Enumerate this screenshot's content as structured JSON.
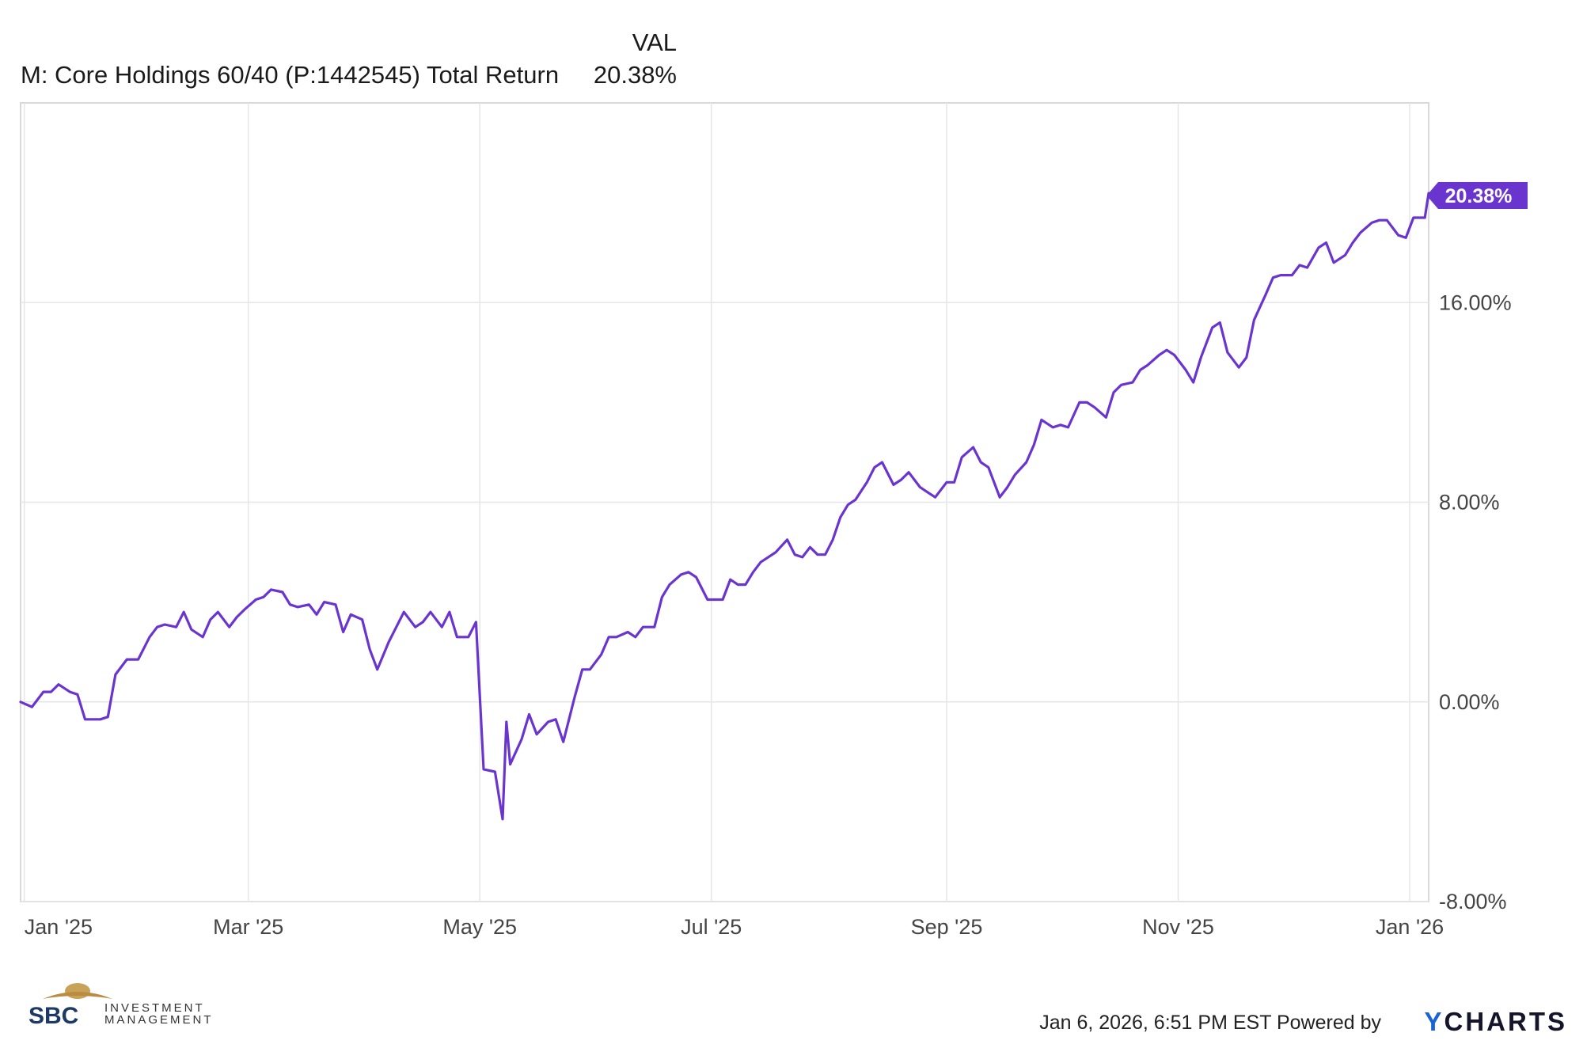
{
  "legend": {
    "column_header": "VAL",
    "series_name": "M: Core Holdings 60/40 (P:1442545) Total Return",
    "series_value": "20.38%"
  },
  "last_value_badge": "20.38%",
  "footer": {
    "timestamp": "Jan 6, 2026, 6:51 PM EST",
    "powered_by": "Powered by",
    "brand_y": "Y",
    "brand_rest": "CHARTS",
    "logo_letters": "SBC",
    "logo_word1": "INVESTMENT",
    "logo_word2": "MANAGEMENT"
  },
  "colors": {
    "series": "#6a35cf",
    "grid": "#e6e6e6",
    "axis": "#cccccc"
  },
  "chart_data": {
    "type": "line",
    "title": "",
    "xlabel": "",
    "ylabel": "",
    "x_ticks": [
      "Jan '25",
      "Mar '25",
      "May '25",
      "Jul '25",
      "Sep '25",
      "Nov '25",
      "Jan '26"
    ],
    "x_tick_dates": [
      "2025-01-01",
      "2025-03-01",
      "2025-05-01",
      "2025-07-01",
      "2025-09-01",
      "2025-11-01",
      "2026-01-01"
    ],
    "y_ticks": [
      "16.00%",
      "8.00%",
      "0.00%",
      "-8.00%"
    ],
    "y_tick_values": [
      16,
      8,
      0,
      -8
    ],
    "ylim": [
      -8,
      24
    ],
    "xlim": [
      "2024-12-31",
      "2026-01-06"
    ],
    "grid": true,
    "series": [
      {
        "name": "M: Core Holdings 60/40 (P:1442545) Total Return",
        "unit": "%",
        "points": [
          [
            "2024-12-31",
            0.0
          ],
          [
            "2025-01-03",
            -0.2
          ],
          [
            "2025-01-06",
            0.4
          ],
          [
            "2025-01-08",
            0.4
          ],
          [
            "2025-01-10",
            0.7
          ],
          [
            "2025-01-13",
            0.4
          ],
          [
            "2025-01-15",
            0.3
          ],
          [
            "2025-01-17",
            -0.7
          ],
          [
            "2025-01-21",
            -0.7
          ],
          [
            "2025-01-23",
            -0.6
          ],
          [
            "2025-01-25",
            1.1
          ],
          [
            "2025-01-28",
            1.7
          ],
          [
            "2025-01-31",
            1.7
          ],
          [
            "2025-02-03",
            2.6
          ],
          [
            "2025-02-05",
            3.0
          ],
          [
            "2025-02-07",
            3.1
          ],
          [
            "2025-02-10",
            3.0
          ],
          [
            "2025-02-12",
            3.6
          ],
          [
            "2025-02-14",
            2.9
          ],
          [
            "2025-02-17",
            2.6
          ],
          [
            "2025-02-19",
            3.3
          ],
          [
            "2025-02-21",
            3.6
          ],
          [
            "2025-02-24",
            3.0
          ],
          [
            "2025-02-26",
            3.4
          ],
          [
            "2025-02-28",
            3.7
          ],
          [
            "2025-03-03",
            4.1
          ],
          [
            "2025-03-05",
            4.2
          ],
          [
            "2025-03-07",
            4.5
          ],
          [
            "2025-03-10",
            4.4
          ],
          [
            "2025-03-12",
            3.9
          ],
          [
            "2025-03-14",
            3.8
          ],
          [
            "2025-03-17",
            3.9
          ],
          [
            "2025-03-19",
            3.5
          ],
          [
            "2025-03-21",
            4.0
          ],
          [
            "2025-03-24",
            3.9
          ],
          [
            "2025-03-26",
            2.8
          ],
          [
            "2025-03-28",
            3.5
          ],
          [
            "2025-03-31",
            3.3
          ],
          [
            "2025-04-02",
            2.1
          ],
          [
            "2025-04-04",
            1.3
          ],
          [
            "2025-04-07",
            2.4
          ],
          [
            "2025-04-09",
            3.0
          ],
          [
            "2025-04-11",
            3.6
          ],
          [
            "2025-04-14",
            3.0
          ],
          [
            "2025-04-16",
            3.2
          ],
          [
            "2025-04-18",
            3.6
          ],
          [
            "2025-04-21",
            3.0
          ],
          [
            "2025-04-23",
            3.6
          ],
          [
            "2025-04-25",
            2.6
          ],
          [
            "2025-04-28",
            2.6
          ],
          [
            "2025-04-30",
            3.2
          ],
          [
            "2025-05-02",
            -2.7
          ],
          [
            "2025-05-05",
            -2.8
          ],
          [
            "2025-05-07",
            -4.7
          ],
          [
            "2025-05-08",
            -0.8
          ],
          [
            "2025-05-09",
            -2.5
          ],
          [
            "2025-05-12",
            -1.5
          ],
          [
            "2025-05-14",
            -0.5
          ],
          [
            "2025-05-16",
            -1.3
          ],
          [
            "2025-05-19",
            -0.8
          ],
          [
            "2025-05-21",
            -0.7
          ],
          [
            "2025-05-23",
            -1.6
          ],
          [
            "2025-05-26",
            0.2
          ],
          [
            "2025-05-28",
            1.3
          ],
          [
            "2025-05-30",
            1.3
          ],
          [
            "2025-06-02",
            1.9
          ],
          [
            "2025-06-04",
            2.6
          ],
          [
            "2025-06-06",
            2.6
          ],
          [
            "2025-06-09",
            2.8
          ],
          [
            "2025-06-11",
            2.6
          ],
          [
            "2025-06-13",
            3.0
          ],
          [
            "2025-06-16",
            3.0
          ],
          [
            "2025-06-18",
            4.2
          ],
          [
            "2025-06-20",
            4.7
          ],
          [
            "2025-06-23",
            5.1
          ],
          [
            "2025-06-25",
            5.2
          ],
          [
            "2025-06-27",
            5.0
          ],
          [
            "2025-06-30",
            4.1
          ],
          [
            "2025-07-02",
            4.1
          ],
          [
            "2025-07-04",
            4.1
          ],
          [
            "2025-07-06",
            4.9
          ],
          [
            "2025-07-08",
            4.7
          ],
          [
            "2025-07-10",
            4.7
          ],
          [
            "2025-07-12",
            5.2
          ],
          [
            "2025-07-14",
            5.6
          ],
          [
            "2025-07-16",
            5.8
          ],
          [
            "2025-07-18",
            6.0
          ],
          [
            "2025-07-21",
            6.5
          ],
          [
            "2025-07-23",
            5.9
          ],
          [
            "2025-07-25",
            5.8
          ],
          [
            "2025-07-27",
            6.2
          ],
          [
            "2025-07-29",
            5.9
          ],
          [
            "2025-07-31",
            5.9
          ],
          [
            "2025-08-02",
            6.5
          ],
          [
            "2025-08-04",
            7.4
          ],
          [
            "2025-08-06",
            7.9
          ],
          [
            "2025-08-08",
            8.1
          ],
          [
            "2025-08-11",
            8.8
          ],
          [
            "2025-08-13",
            9.4
          ],
          [
            "2025-08-15",
            9.6
          ],
          [
            "2025-08-18",
            8.7
          ],
          [
            "2025-08-20",
            8.9
          ],
          [
            "2025-08-22",
            9.2
          ],
          [
            "2025-08-25",
            8.6
          ],
          [
            "2025-08-27",
            8.4
          ],
          [
            "2025-08-29",
            8.2
          ],
          [
            "2025-09-01",
            8.8
          ],
          [
            "2025-09-03",
            8.8
          ],
          [
            "2025-09-05",
            9.8
          ],
          [
            "2025-09-08",
            10.2
          ],
          [
            "2025-09-10",
            9.6
          ],
          [
            "2025-09-12",
            9.4
          ],
          [
            "2025-09-15",
            8.2
          ],
          [
            "2025-09-17",
            8.6
          ],
          [
            "2025-09-19",
            9.1
          ],
          [
            "2025-09-22",
            9.6
          ],
          [
            "2025-09-24",
            10.3
          ],
          [
            "2025-09-26",
            11.3
          ],
          [
            "2025-09-29",
            11.0
          ],
          [
            "2025-10-01",
            11.1
          ],
          [
            "2025-10-03",
            11.0
          ],
          [
            "2025-10-06",
            12.0
          ],
          [
            "2025-10-08",
            12.0
          ],
          [
            "2025-10-10",
            11.8
          ],
          [
            "2025-10-13",
            11.4
          ],
          [
            "2025-10-15",
            12.4
          ],
          [
            "2025-10-17",
            12.7
          ],
          [
            "2025-10-20",
            12.8
          ],
          [
            "2025-10-22",
            13.3
          ],
          [
            "2025-10-24",
            13.5
          ],
          [
            "2025-10-27",
            13.9
          ],
          [
            "2025-10-29",
            14.1
          ],
          [
            "2025-10-31",
            13.9
          ],
          [
            "2025-11-03",
            13.3
          ],
          [
            "2025-11-05",
            12.8
          ],
          [
            "2025-11-07",
            13.8
          ],
          [
            "2025-11-10",
            15.0
          ],
          [
            "2025-11-12",
            15.2
          ],
          [
            "2025-11-14",
            14.0
          ],
          [
            "2025-11-17",
            13.4
          ],
          [
            "2025-11-19",
            13.8
          ],
          [
            "2025-11-21",
            15.3
          ],
          [
            "2025-11-24",
            16.3
          ],
          [
            "2025-11-26",
            17.0
          ],
          [
            "2025-11-28",
            17.1
          ],
          [
            "2025-12-01",
            17.1
          ],
          [
            "2025-12-03",
            17.5
          ],
          [
            "2025-12-05",
            17.4
          ],
          [
            "2025-12-08",
            18.2
          ],
          [
            "2025-12-10",
            18.4
          ],
          [
            "2025-12-12",
            17.6
          ],
          [
            "2025-12-15",
            17.9
          ],
          [
            "2025-12-17",
            18.4
          ],
          [
            "2025-12-19",
            18.8
          ],
          [
            "2025-12-22",
            19.2
          ],
          [
            "2025-12-24",
            19.3
          ],
          [
            "2025-12-26",
            19.3
          ],
          [
            "2025-12-29",
            18.7
          ],
          [
            "2025-12-31",
            18.6
          ],
          [
            "2026-01-02",
            19.4
          ],
          [
            "2026-01-05",
            19.4
          ],
          [
            "2026-01-06",
            20.38
          ]
        ]
      }
    ]
  }
}
